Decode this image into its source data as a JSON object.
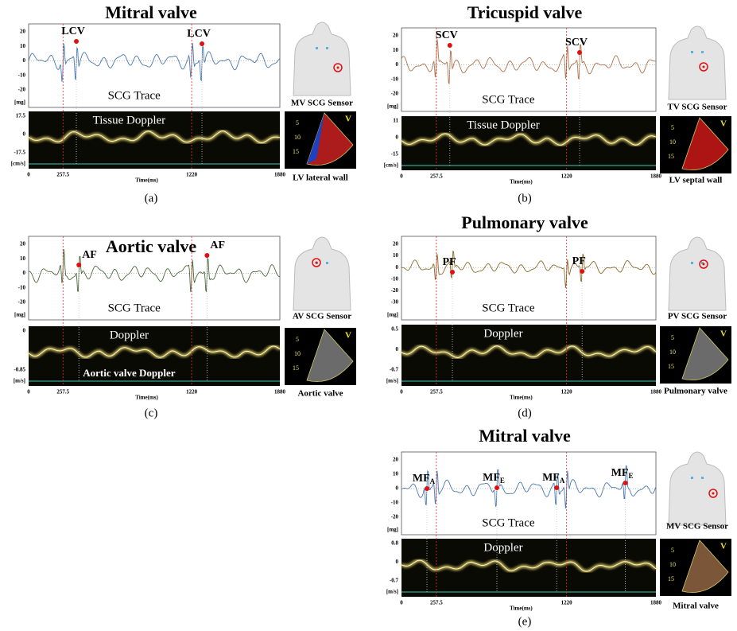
{
  "panels": [
    {
      "label": "(a)",
      "title": "Mitral valve",
      "scg_label": "SCG Trace",
      "doppler_label": "Tissue Doppler",
      "scg_yticks": [
        20,
        10,
        0,
        -10,
        -20
      ],
      "scg_unit": "[mg]",
      "doppler_yticks": [
        17.5,
        0,
        -17.5
      ],
      "doppler_unit": "[cm/s]",
      "xticks": [
        0,
        257.5,
        1220,
        1880
      ],
      "x_label": "Time(ms)",
      "markers": [
        {
          "text": "LCV"
        },
        {
          "text": "LCV"
        }
      ],
      "sensor_label": "MV SCG Sensor",
      "echo_label": "LV lateral wall",
      "echo_ticks": [
        5,
        10,
        15
      ],
      "echo_mark": "V"
    },
    {
      "label": "(b)",
      "title": "Tricuspid valve",
      "scg_label": "SCG Trace",
      "doppler_label": "Tissue Doppler",
      "scg_yticks": [
        20,
        10,
        0,
        -10,
        -20
      ],
      "scg_unit": "[mg]",
      "doppler_yticks": [
        11,
        0,
        -15
      ],
      "doppler_unit": "[cm/s]",
      "xticks": [
        0,
        257.5,
        1220,
        1880
      ],
      "x_label": "Time(ms)",
      "markers": [
        {
          "text": "SCV"
        },
        {
          "text": "SCV"
        }
      ],
      "sensor_label": "TV SCG Sensor",
      "echo_label": "LV septal wall",
      "echo_ticks": [
        5,
        10,
        15
      ],
      "echo_mark": "V"
    },
    {
      "label": "(c)",
      "title": "Aortic valve",
      "scg_label": "SCG Trace",
      "doppler_label": "Doppler",
      "doppler_caption": "Aortic valve Doppler",
      "scg_yticks": [
        20,
        10,
        0,
        -10,
        -20
      ],
      "scg_unit": "[mg]",
      "doppler_yticks": [
        0,
        -0.85
      ],
      "doppler_unit": "[m/s]",
      "xticks": [
        0,
        257.5,
        1220,
        1880
      ],
      "x_label": "Time(ms)",
      "markers": [
        {
          "text": "AF"
        },
        {
          "text": "AF"
        }
      ],
      "sensor_label": "AV SCG Sensor",
      "echo_label": "Aortic valve",
      "echo_ticks": [
        5,
        10,
        15
      ],
      "echo_mark": "V"
    },
    {
      "label": "(d)",
      "title": "Pulmonary valve",
      "scg_label": "SCG Trace",
      "doppler_label": "Doppler",
      "scg_yticks": [
        20,
        10,
        0,
        -10,
        -20,
        -30
      ],
      "scg_unit": "[mg]",
      "doppler_yticks": [
        0.5,
        0,
        -0.7
      ],
      "doppler_unit": "[m/s]",
      "xticks": [
        0,
        257.5,
        1220,
        1880
      ],
      "x_label": "Time(ms)",
      "markers": [
        {
          "text": "PF"
        },
        {
          "text": "PF"
        }
      ],
      "sensor_label": "PV SCG Sensor",
      "echo_label": "Pulmonary valve",
      "echo_ticks": [
        5,
        10,
        15
      ],
      "echo_mark": "V"
    },
    {
      "label": "(e)",
      "title": "Mitral valve",
      "scg_label": "SCG Trace",
      "doppler_label": "Doppler",
      "scg_yticks": [
        20,
        10,
        0,
        -10,
        -20
      ],
      "scg_unit": "[mg]",
      "doppler_yticks": [
        0.8,
        0,
        -0.7
      ],
      "doppler_unit": "[m/s]",
      "xticks": [
        0,
        257.5,
        1220,
        1880
      ],
      "x_label": "Time(ms)",
      "markers": [
        {
          "text": "MF",
          "sub": "A"
        },
        {
          "text": "MF",
          "sub": "E"
        },
        {
          "text": "MF",
          "sub": "A"
        },
        {
          "text": "MF",
          "sub": "E"
        }
      ],
      "sensor_label": "MV SCG Sensor",
      "echo_label": "Mitral valve",
      "echo_ticks": [
        5,
        10,
        15
      ],
      "echo_mark": "V"
    }
  ]
}
